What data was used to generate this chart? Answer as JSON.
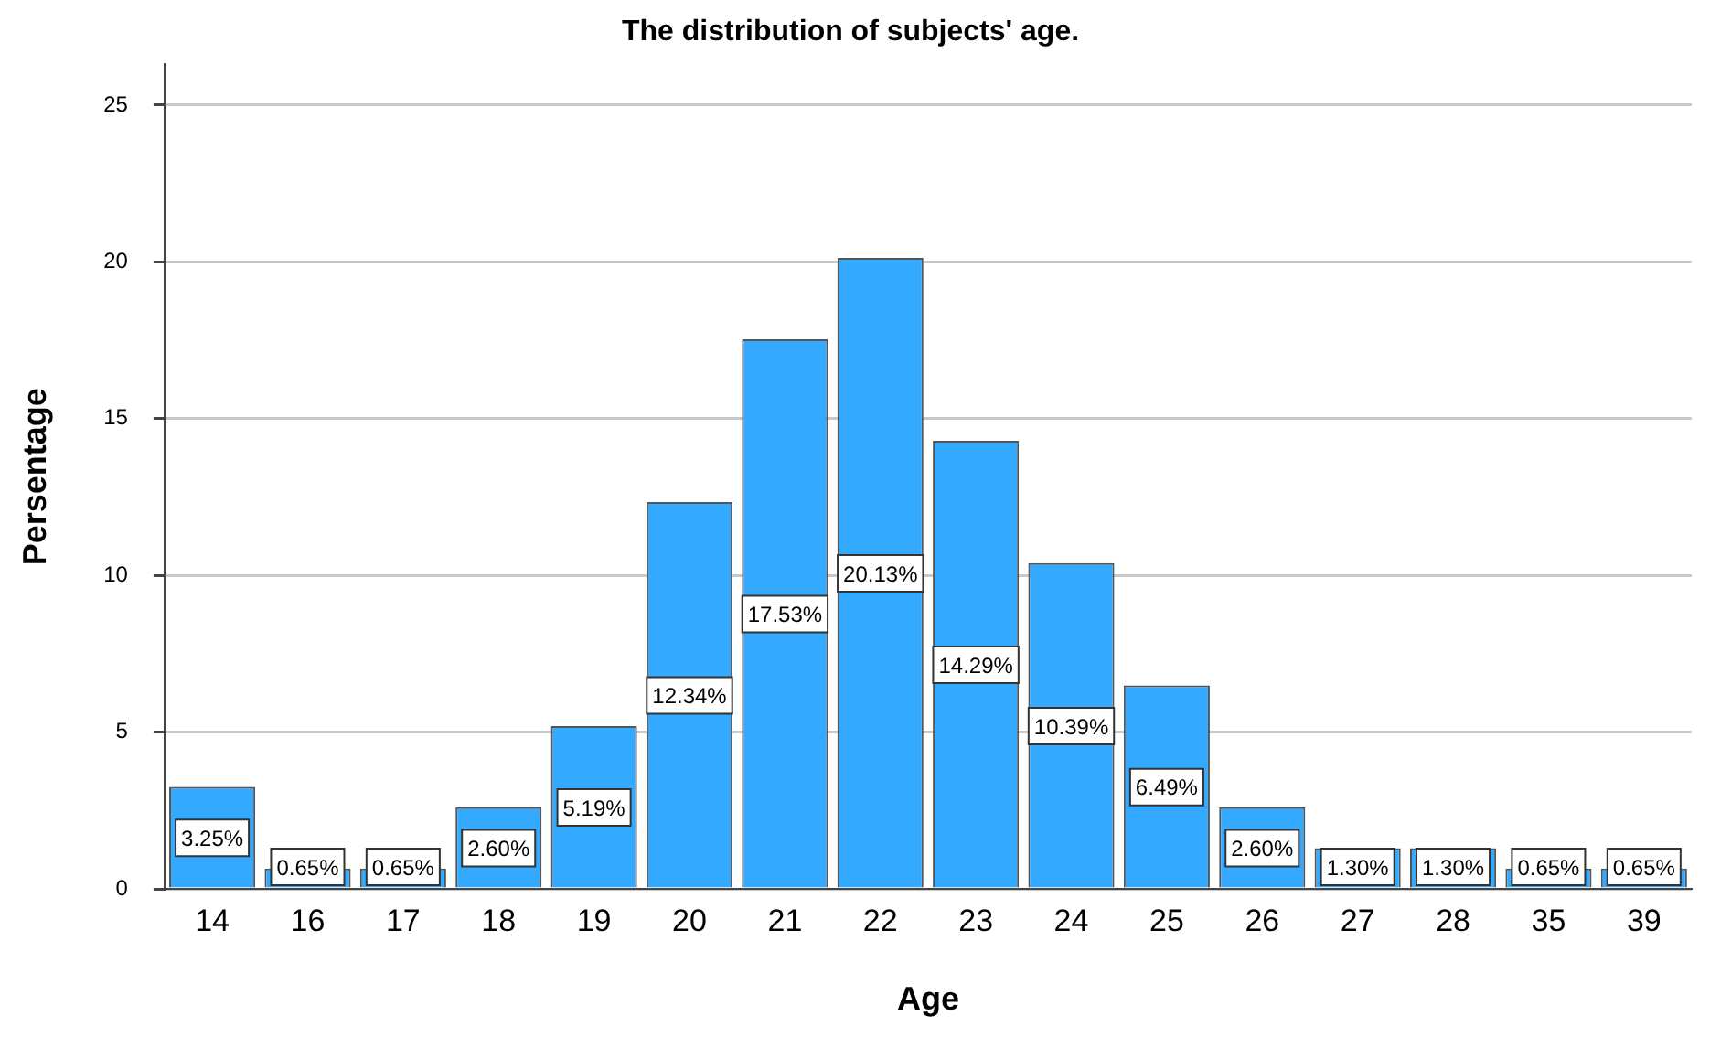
{
  "chart_data": {
    "type": "bar",
    "title": "The distribution of subjects' age.",
    "xlabel": "Age",
    "ylabel": "Persentage",
    "categories": [
      "14",
      "16",
      "17",
      "18",
      "19",
      "20",
      "21",
      "22",
      "23",
      "24",
      "25",
      "26",
      "27",
      "28",
      "35",
      "39"
    ],
    "values": [
      3.25,
      0.65,
      0.65,
      2.6,
      5.19,
      12.34,
      17.53,
      20.13,
      14.29,
      10.39,
      6.49,
      2.6,
      1.3,
      1.3,
      0.65,
      0.65
    ],
    "value_labels": [
      "3.25%",
      "0.65%",
      "0.65%",
      "2.60%",
      "5.19%",
      "12.34%",
      "17.53%",
      "20.13%",
      "14.29%",
      "10.39%",
      "6.49%",
      "2.60%",
      "1.30%",
      "1.30%",
      "0.65%",
      "0.65%"
    ],
    "color": "#33aaff",
    "ylim": [
      0,
      26.3
    ],
    "yticks": [
      0,
      5,
      10,
      15,
      20,
      25
    ],
    "grid": "y",
    "legend": false
  }
}
